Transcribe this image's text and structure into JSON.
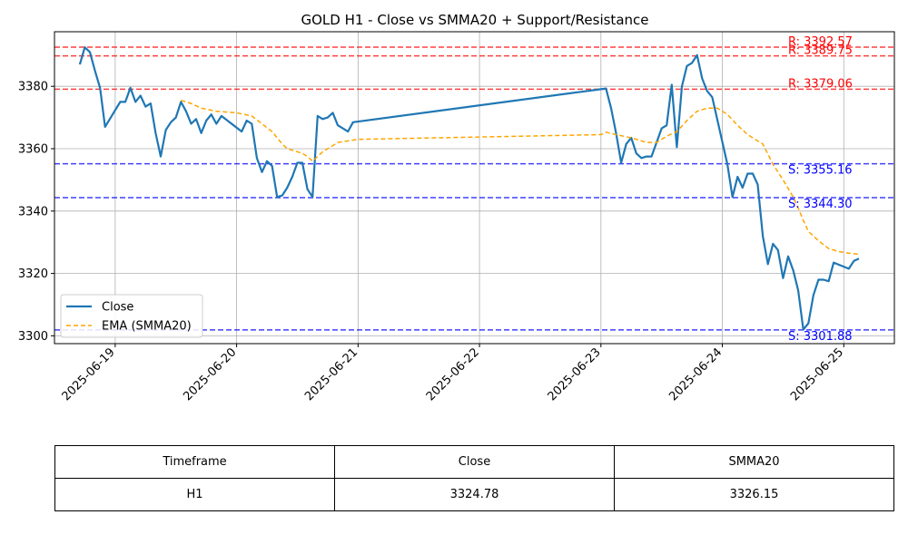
{
  "chart_data": {
    "type": "line",
    "title": "GOLD H1 - Close vs SMMA20 + Support/Resistance",
    "xlabel": "",
    "ylabel": "",
    "x_range": [
      "2025-06-18 12:00",
      "2025-06-25 10:00"
    ],
    "ylim": [
      3297.5,
      3397.5
    ],
    "y_ticks": [
      3300,
      3320,
      3340,
      3360,
      3380
    ],
    "x_ticks": [
      "2025-06-19",
      "2025-06-20",
      "2025-06-21",
      "2025-06-22",
      "2025-06-23",
      "2025-06-24",
      "2025-06-25"
    ],
    "grid": true,
    "legend_position": "lower-left",
    "series": [
      {
        "name": "Close",
        "color": "#1f77b4",
        "style": "solid",
        "points": [
          [
            "2025-06-18 17:00",
            3387.0
          ],
          [
            "2025-06-18 18:00",
            3392.5
          ],
          [
            "2025-06-18 19:00",
            3391.0
          ],
          [
            "2025-06-18 20:00",
            3385.0
          ],
          [
            "2025-06-18 21:00",
            3379.5
          ],
          [
            "2025-06-18 22:00",
            3367.0
          ],
          [
            "2025-06-19 01:00",
            3375.0
          ],
          [
            "2025-06-19 02:00",
            3375.0
          ],
          [
            "2025-06-19 03:00",
            3379.5
          ],
          [
            "2025-06-19 04:00",
            3375.0
          ],
          [
            "2025-06-19 05:00",
            3377.0
          ],
          [
            "2025-06-19 06:00",
            3373.5
          ],
          [
            "2025-06-19 07:00",
            3374.5
          ],
          [
            "2025-06-19 08:00",
            3365.0
          ],
          [
            "2025-06-19 09:00",
            3357.5
          ],
          [
            "2025-06-19 10:00",
            3366.0
          ],
          [
            "2025-06-19 11:00",
            3368.5
          ],
          [
            "2025-06-19 12:00",
            3370.0
          ],
          [
            "2025-06-19 13:00",
            3375.0
          ],
          [
            "2025-06-19 14:00",
            3372.0
          ],
          [
            "2025-06-19 15:00",
            3368.0
          ],
          [
            "2025-06-19 16:00",
            3369.5
          ],
          [
            "2025-06-19 17:00",
            3365.0
          ],
          [
            "2025-06-19 18:00",
            3369.0
          ],
          [
            "2025-06-19 19:00",
            3371.0
          ],
          [
            "2025-06-19 20:00",
            3368.0
          ],
          [
            "2025-06-19 21:00",
            3370.5
          ],
          [
            "2025-06-20 01:00",
            3365.5
          ],
          [
            "2025-06-20 02:00",
            3369.0
          ],
          [
            "2025-06-20 03:00",
            3368.0
          ],
          [
            "2025-06-20 04:00",
            3357.0
          ],
          [
            "2025-06-20 05:00",
            3352.5
          ],
          [
            "2025-06-20 06:00",
            3356.0
          ],
          [
            "2025-06-20 07:00",
            3354.5
          ],
          [
            "2025-06-20 08:00",
            3344.5
          ],
          [
            "2025-06-20 09:00",
            3345.0
          ],
          [
            "2025-06-20 10:00",
            3347.5
          ],
          [
            "2025-06-20 11:00",
            3351.0
          ],
          [
            "2025-06-20 12:00",
            3355.5
          ],
          [
            "2025-06-20 13:00",
            3355.5
          ],
          [
            "2025-06-20 14:00",
            3347.0
          ],
          [
            "2025-06-20 15:00",
            3344.5
          ],
          [
            "2025-06-20 16:00",
            3370.5
          ],
          [
            "2025-06-20 17:00",
            3369.5
          ],
          [
            "2025-06-20 18:00",
            3370.0
          ],
          [
            "2025-06-20 19:00",
            3371.5
          ],
          [
            "2025-06-20 20:00",
            3367.5
          ],
          [
            "2025-06-20 21:00",
            3366.5
          ],
          [
            "2025-06-20 22:00",
            3365.5
          ],
          [
            "2025-06-20 23:00",
            3368.5
          ],
          [
            "2025-06-23 01:00",
            3379.3
          ],
          [
            "2025-06-23 02:00",
            3373.0
          ],
          [
            "2025-06-23 03:00",
            3365.0
          ],
          [
            "2025-06-23 04:00",
            3355.5
          ],
          [
            "2025-06-23 05:00",
            3361.5
          ],
          [
            "2025-06-23 06:00",
            3363.5
          ],
          [
            "2025-06-23 07:00",
            3358.5
          ],
          [
            "2025-06-23 08:00",
            3357.0
          ],
          [
            "2025-06-23 09:00",
            3357.5
          ],
          [
            "2025-06-23 10:00",
            3357.5
          ],
          [
            "2025-06-23 11:00",
            3362.0
          ],
          [
            "2025-06-23 12:00",
            3366.5
          ],
          [
            "2025-06-23 13:00",
            3367.5
          ],
          [
            "2025-06-23 14:00",
            3380.5
          ],
          [
            "2025-06-23 15:00",
            3360.5
          ],
          [
            "2025-06-23 16:00",
            3380.0
          ],
          [
            "2025-06-23 17:00",
            3386.5
          ],
          [
            "2025-06-23 18:00",
            3387.5
          ],
          [
            "2025-06-23 19:00",
            3390.0
          ],
          [
            "2025-06-23 20:00",
            3382.5
          ],
          [
            "2025-06-23 21:00",
            3378.5
          ],
          [
            "2025-06-23 22:00",
            3376.5
          ],
          [
            "2025-06-24 01:00",
            3355.0
          ],
          [
            "2025-06-24 02:00",
            3344.5
          ],
          [
            "2025-06-24 03:00",
            3351.0
          ],
          [
            "2025-06-24 04:00",
            3347.5
          ],
          [
            "2025-06-24 05:00",
            3352.0
          ],
          [
            "2025-06-24 06:00",
            3352.0
          ],
          [
            "2025-06-24 07:00",
            3348.5
          ],
          [
            "2025-06-24 08:00",
            3332.0
          ],
          [
            "2025-06-24 09:00",
            3323.0
          ],
          [
            "2025-06-24 10:00",
            3329.5
          ],
          [
            "2025-06-24 11:00",
            3327.5
          ],
          [
            "2025-06-24 12:00",
            3318.5
          ],
          [
            "2025-06-24 13:00",
            3325.5
          ],
          [
            "2025-06-24 14:00",
            3321.0
          ],
          [
            "2025-06-24 15:00",
            3314.5
          ],
          [
            "2025-06-24 16:00",
            3302.0
          ],
          [
            "2025-06-24 17:00",
            3304.0
          ],
          [
            "2025-06-24 18:00",
            3313.0
          ],
          [
            "2025-06-24 19:00",
            3318.0
          ],
          [
            "2025-06-24 20:00",
            3318.0
          ],
          [
            "2025-06-24 21:00",
            3317.5
          ],
          [
            "2025-06-24 22:00",
            3323.5
          ],
          [
            "2025-06-25 01:00",
            3321.5
          ],
          [
            "2025-06-25 02:00",
            3324.0
          ],
          [
            "2025-06-25 03:00",
            3324.78
          ]
        ]
      },
      {
        "name": "EMA (SMMA20)",
        "color": "#ffa500",
        "style": "dashed",
        "points": [
          [
            "2025-06-19 13:00",
            3375.5
          ],
          [
            "2025-06-19 15:00",
            3374.5
          ],
          [
            "2025-06-19 17:00",
            3373.0
          ],
          [
            "2025-06-19 20:00",
            3372.0
          ],
          [
            "2025-06-20 00:00",
            3371.5
          ],
          [
            "2025-06-20 03:00",
            3370.5
          ],
          [
            "2025-06-20 05:00",
            3368.0
          ],
          [
            "2025-06-20 07:00",
            3365.5
          ],
          [
            "2025-06-20 09:00",
            3361.5
          ],
          [
            "2025-06-20 10:00",
            3360.0
          ],
          [
            "2025-06-20 12:00",
            3359.0
          ],
          [
            "2025-06-20 13:00",
            3358.5
          ],
          [
            "2025-06-20 14:00",
            3357.5
          ],
          [
            "2025-06-20 15:00",
            3356.0
          ],
          [
            "2025-06-20 16:00",
            3357.5
          ],
          [
            "2025-06-20 17:00",
            3359.0
          ],
          [
            "2025-06-20 19:00",
            3361.0
          ],
          [
            "2025-06-20 20:00",
            3362.0
          ],
          [
            "2025-06-20 22:00",
            3362.5
          ],
          [
            "2025-06-21 00:00",
            3363.0
          ],
          [
            "2025-06-23 00:00",
            3364.5
          ],
          [
            "2025-06-23 01:00",
            3365.3
          ],
          [
            "2025-06-23 03:00",
            3364.5
          ],
          [
            "2025-06-23 06:00",
            3363.5
          ],
          [
            "2025-06-23 09:00",
            3362.0
          ],
          [
            "2025-06-23 11:00",
            3362.0
          ],
          [
            "2025-06-23 13:00",
            3364.0
          ],
          [
            "2025-06-23 15:00",
            3365.5
          ],
          [
            "2025-06-23 17:00",
            3369.0
          ],
          [
            "2025-06-23 19:00",
            3372.0
          ],
          [
            "2025-06-23 21:00",
            3373.0
          ],
          [
            "2025-06-23 23:00",
            3373.0
          ],
          [
            "2025-06-24 01:00",
            3371.0
          ],
          [
            "2025-06-24 03:00",
            3367.5
          ],
          [
            "2025-06-24 05:00",
            3364.5
          ],
          [
            "2025-06-24 08:00",
            3361.5
          ],
          [
            "2025-06-24 10:00",
            3355.0
          ],
          [
            "2025-06-24 12:00",
            3350.0
          ],
          [
            "2025-06-24 14:00",
            3344.5
          ],
          [
            "2025-06-24 15:00",
            3341.0
          ],
          [
            "2025-06-24 16:00",
            3337.0
          ],
          [
            "2025-06-24 17:00",
            3333.5
          ],
          [
            "2025-06-24 19:00",
            3330.5
          ],
          [
            "2025-06-24 21:00",
            3328.0
          ],
          [
            "2025-06-24 23:00",
            3327.0
          ],
          [
            "2025-06-25 01:00",
            3326.5
          ],
          [
            "2025-06-25 03:00",
            3326.15
          ]
        ]
      }
    ],
    "levels": [
      {
        "label": "R: 3392.57",
        "value": 3392.57,
        "type": "resistance",
        "color": "#ff0000"
      },
      {
        "label": "R: 3389.75",
        "value": 3389.75,
        "type": "resistance",
        "color": "#ff0000"
      },
      {
        "label": "R: 3379.06",
        "value": 3379.06,
        "type": "resistance",
        "color": "#ff0000"
      },
      {
        "label": "S: 3355.16",
        "value": 3355.16,
        "type": "support",
        "color": "#0000ff"
      },
      {
        "label": "S: 3344.30",
        "value": 3344.3,
        "type": "support",
        "color": "#0000ff"
      },
      {
        "label": "S: 3301.88",
        "value": 3301.88,
        "type": "support",
        "color": "#0000ff"
      }
    ]
  },
  "table": {
    "headers": [
      "Timeframe",
      "Close",
      "SMMA20"
    ],
    "row": [
      "H1",
      "3324.78",
      "3326.15"
    ]
  }
}
